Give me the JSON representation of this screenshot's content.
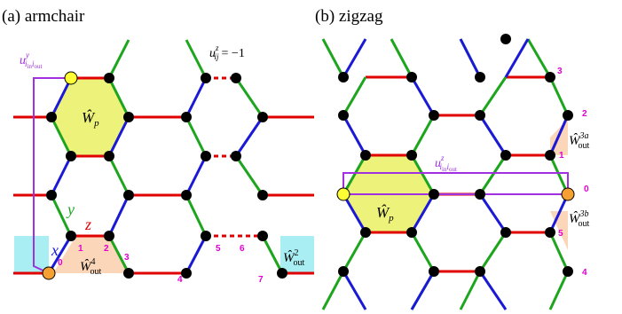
{
  "panel_a": {
    "title": "(a) armchair",
    "wp_label": "Ŵ",
    "wp_sub": "p",
    "u_y_label": "u",
    "u_y_sup": "y",
    "u_y_sub": "i",
    "u_y_sub2": "in",
    "u_y_sub3": "i",
    "u_y_sub4": "out",
    "u_z_label": "u",
    "u_z_sup": "z",
    "u_z_sub": "ij",
    "u_z_eq": "= −1",
    "bond_y": "y",
    "bond_z": "z",
    "bond_x": "x",
    "wout4_label": "Ŵ",
    "wout4_sup": "4",
    "wout4_sub": "out",
    "wout2_label": "Ŵ",
    "wout2_sup": "2",
    "wout2_sub": "out",
    "site_numbers": [
      "0",
      "1",
      "2",
      "3",
      "4",
      "5",
      "6",
      "7"
    ]
  },
  "panel_b": {
    "title": "(b) zigzag",
    "wp_label": "Ŵ",
    "wp_sub": "p",
    "u_z_label": "u",
    "u_z_sup": "z",
    "u_z_sub": "i",
    "u_z_sub2": "in",
    "u_z_sub3": "i",
    "u_z_sub4": "out",
    "wout3a_label": "Ŵ",
    "wout3a_sup": "3a",
    "wout3a_sub": "out",
    "wout3b_label": "Ŵ",
    "wout3b_sup": "3b",
    "wout3b_sub": "out",
    "site_numbers": [
      "0",
      "1",
      "2",
      "3",
      "4",
      "5"
    ]
  },
  "colors": {
    "x_bond": "#1a1ad6",
    "y_bond": "#1ea51e",
    "z_bond": "#e00000",
    "plaquette": "#ecf27a",
    "site": "#000000",
    "in_site": "#ffff33",
    "out_site": "#f5a030",
    "path": "#a030e0",
    "label_magenta": "#e000d0",
    "mpo_shade": "#fbd6b8",
    "cyan_box": "#a8eef2"
  }
}
